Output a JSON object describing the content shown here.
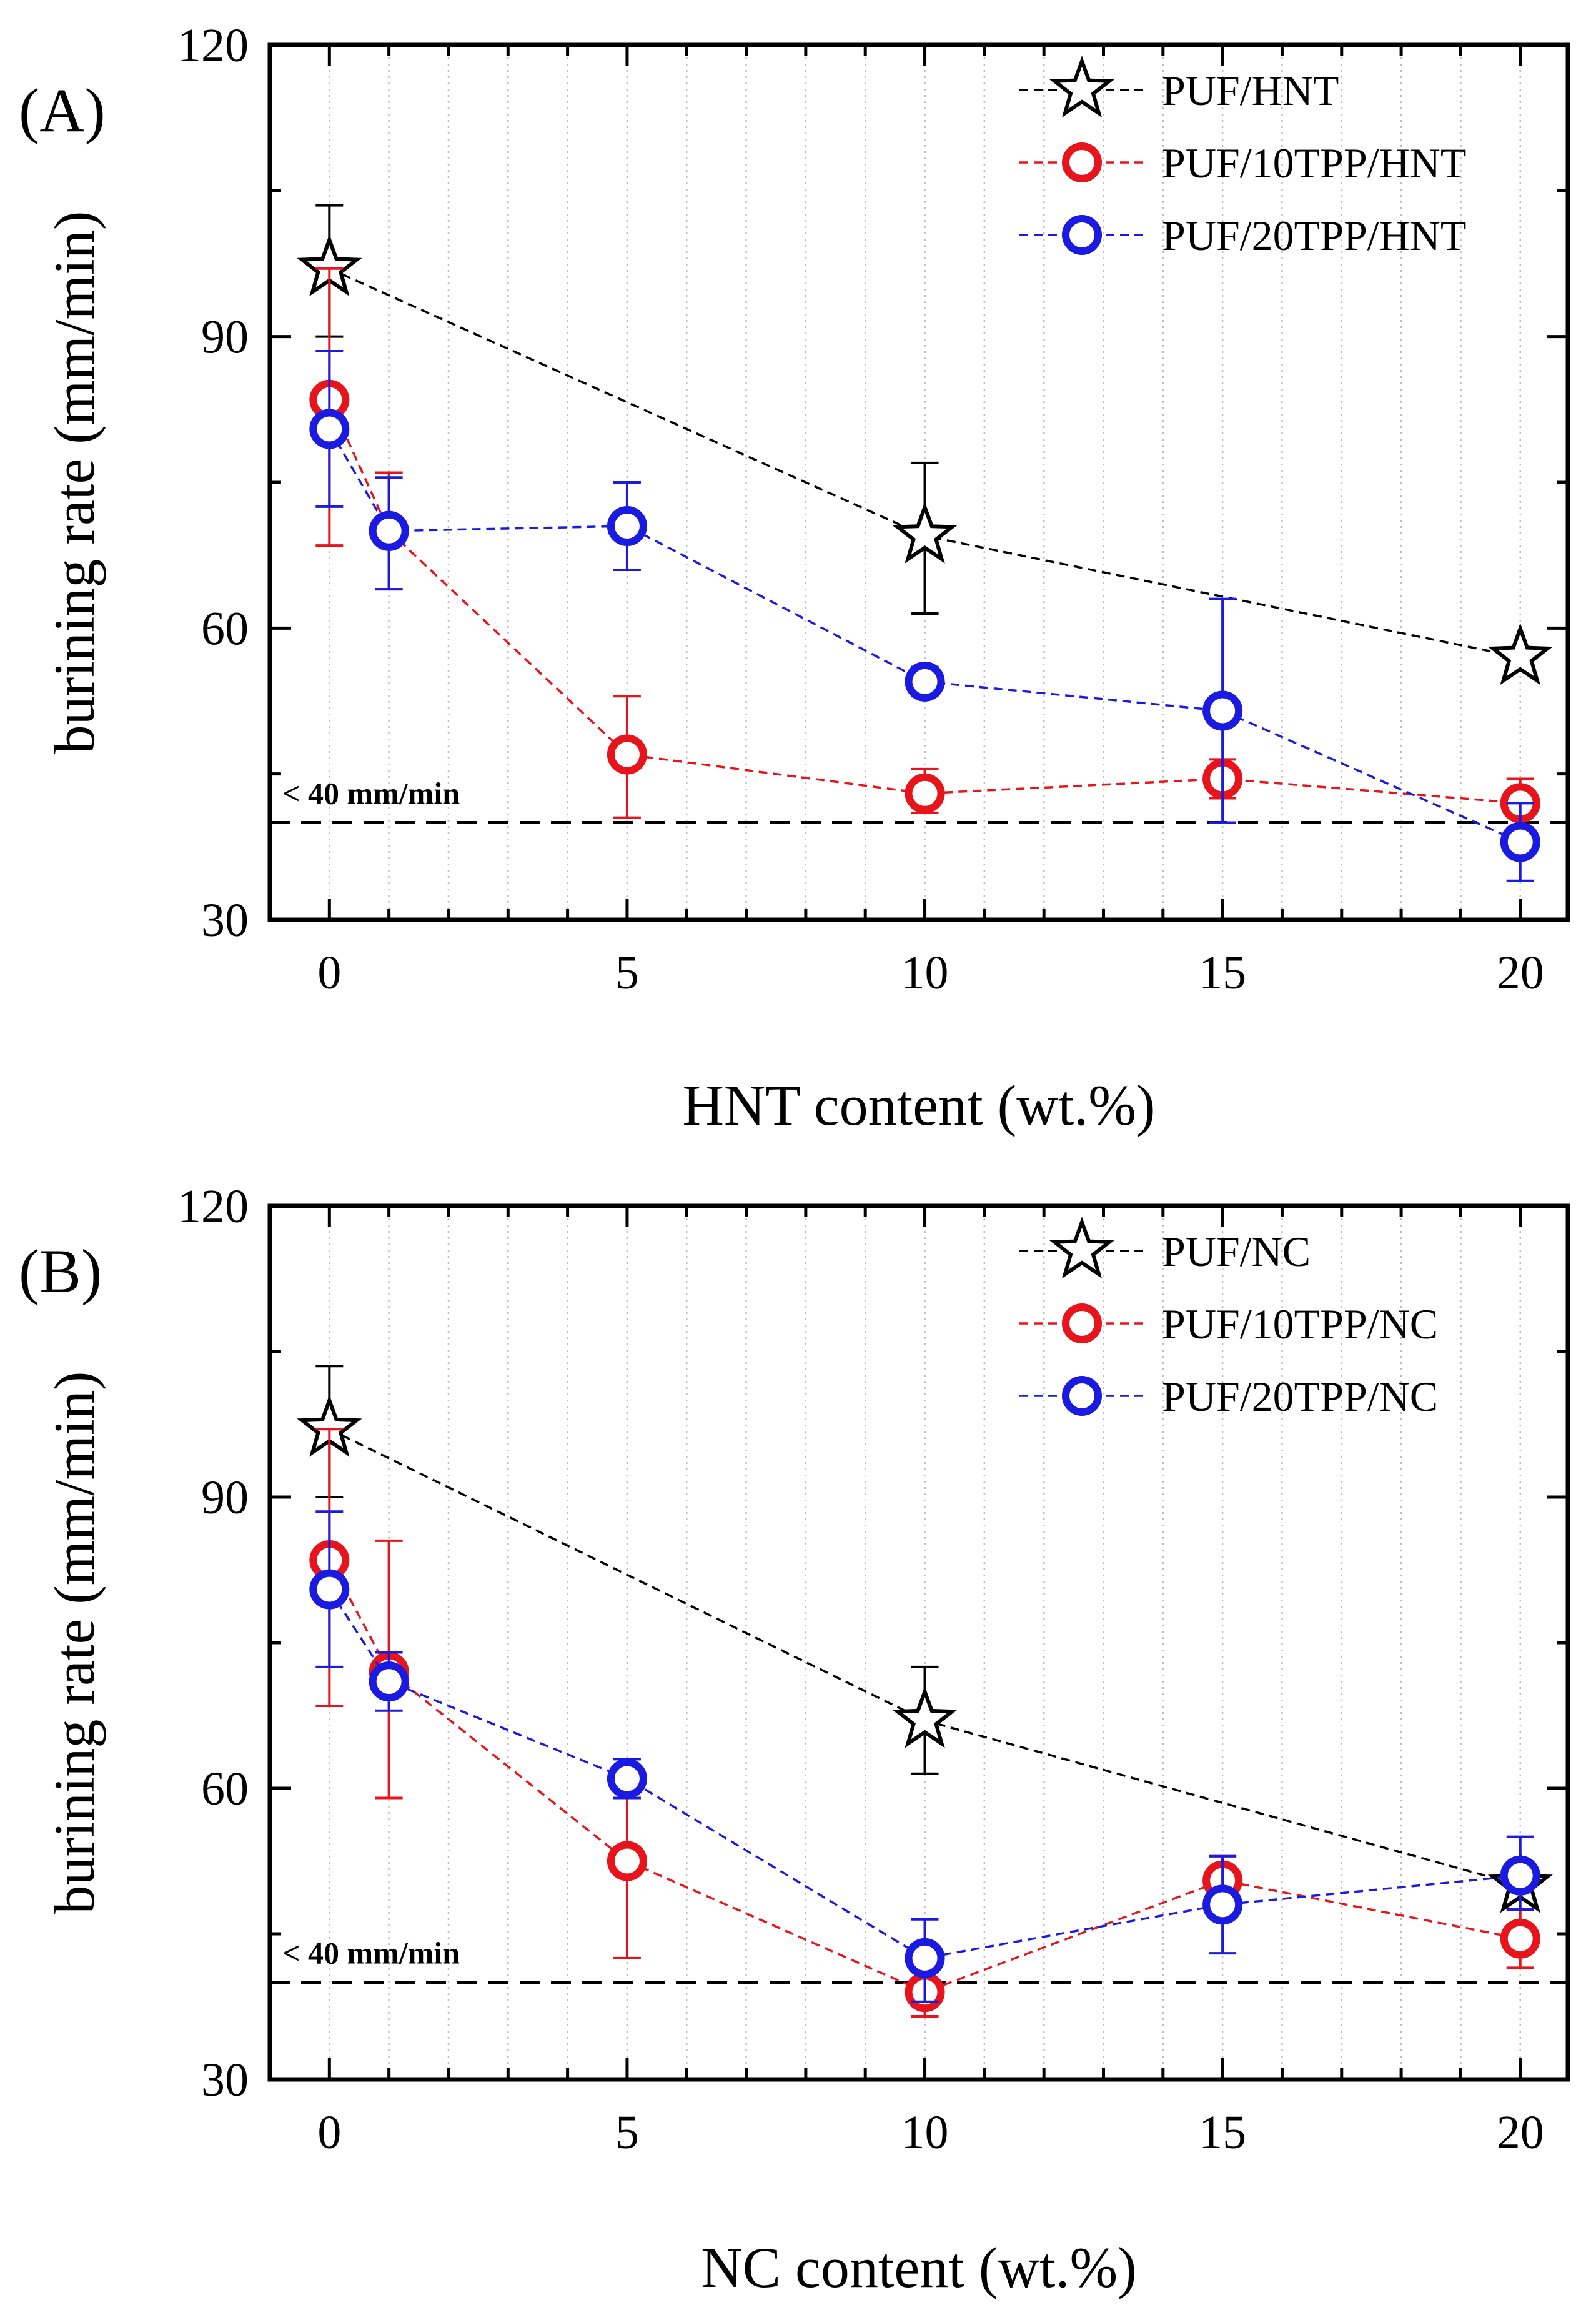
{
  "chart_data": [
    {
      "type": "line",
      "panel_label": "(A)",
      "xlabel": "HNT content (wt.%)",
      "ylabel": "burining rate (mm/min)",
      "xlim": [
        -1,
        20.8
      ],
      "ylim": [
        30,
        120
      ],
      "x_ticks": [
        0,
        5,
        10,
        15,
        20
      ],
      "y_ticks": [
        30,
        60,
        90,
        120
      ],
      "grid": "vertical dotted",
      "legend_position": "top-right",
      "threshold": {
        "value": 40,
        "label": "< 40 mm/min"
      },
      "series": [
        {
          "name": "PUF/HNT",
          "color": "#000000",
          "marker": "star",
          "points": [
            {
              "x": 0,
              "y": 97,
              "err_low": 90,
              "err_high": 103.5
            },
            {
              "x": 10,
              "y": 69.5,
              "err_low": 61.5,
              "err_high": 77
            },
            {
              "x": 20,
              "y": 57,
              "err_low": 56,
              "err_high": 58
            }
          ]
        },
        {
          "name": "PUF/10TPP/HNT",
          "color": "#e8141b",
          "marker": "circle",
          "points": [
            {
              "x": 0,
              "y": 83.5,
              "err_low": 68.5,
              "err_high": 97
            },
            {
              "x": 1,
              "y": 70,
              "err_low": 64,
              "err_high": 76
            },
            {
              "x": 5,
              "y": 47,
              "err_low": 40.5,
              "err_high": 53
            },
            {
              "x": 10,
              "y": 43,
              "err_low": 41,
              "err_high": 45.5
            },
            {
              "x": 15,
              "y": 44.5,
              "err_low": 42.5,
              "err_high": 46.5
            },
            {
              "x": 20,
              "y": 42,
              "err_low": 39.5,
              "err_high": 44.5
            }
          ]
        },
        {
          "name": "PUF/20TPP/HNT",
          "color": "#1a1ae0",
          "marker": "circle",
          "points": [
            {
              "x": 0,
              "y": 80.5,
              "err_low": 72.5,
              "err_high": 88.5
            },
            {
              "x": 1,
              "y": 70,
              "err_low": 64,
              "err_high": 75.5
            },
            {
              "x": 5,
              "y": 70.5,
              "err_low": 66,
              "err_high": 75
            },
            {
              "x": 10,
              "y": 54.5,
              "err_low": 53,
              "err_high": 56
            },
            {
              "x": 15,
              "y": 51.5,
              "err_low": 40,
              "err_high": 63
            },
            {
              "x": 20,
              "y": 38,
              "err_low": 34,
              "err_high": 42
            }
          ]
        }
      ]
    },
    {
      "type": "line",
      "panel_label": "(B)",
      "xlabel": "NC content (wt.%)",
      "ylabel": "burining rate (mm/min)",
      "xlim": [
        -1,
        20.8
      ],
      "ylim": [
        30,
        120
      ],
      "x_ticks": [
        0,
        5,
        10,
        15,
        20
      ],
      "y_ticks": [
        30,
        60,
        90,
        120
      ],
      "grid": "vertical dotted",
      "legend_position": "top-right",
      "threshold": {
        "value": 40,
        "label": "< 40 mm/min"
      },
      "series": [
        {
          "name": "PUF/NC",
          "color": "#000000",
          "marker": "star",
          "points": [
            {
              "x": 0,
              "y": 97,
              "err_low": 90,
              "err_high": 103.5
            },
            {
              "x": 10,
              "y": 67,
              "err_low": 61.5,
              "err_high": 72.5
            },
            {
              "x": 20,
              "y": 50,
              "err_low": 49,
              "err_high": 51
            }
          ]
        },
        {
          "name": "PUF/10TPP/NC",
          "color": "#e8141b",
          "marker": "circle",
          "points": [
            {
              "x": 0,
              "y": 83.5,
              "err_low": 68.5,
              "err_high": 97
            },
            {
              "x": 1,
              "y": 72,
              "err_low": 59,
              "err_high": 85.5
            },
            {
              "x": 5,
              "y": 52.5,
              "err_low": 42.5,
              "err_high": 62
            },
            {
              "x": 10,
              "y": 39,
              "err_low": 36.5,
              "err_high": 41.5
            },
            {
              "x": 15,
              "y": 50.5,
              "err_low": 48,
              "err_high": 53
            },
            {
              "x": 20,
              "y": 44.5,
              "err_low": 41.5,
              "err_high": 47.5
            }
          ]
        },
        {
          "name": "PUF/20TPP/NC",
          "color": "#1a1ae0",
          "marker": "circle",
          "points": [
            {
              "x": 0,
              "y": 80.5,
              "err_low": 72.5,
              "err_high": 88.5
            },
            {
              "x": 1,
              "y": 71,
              "err_low": 68,
              "err_high": 74
            },
            {
              "x": 5,
              "y": 61,
              "err_low": 59,
              "err_high": 63
            },
            {
              "x": 10,
              "y": 42.5,
              "err_low": 38,
              "err_high": 46.5
            },
            {
              "x": 15,
              "y": 48,
              "err_low": 43,
              "err_high": 53
            },
            {
              "x": 20,
              "y": 51,
              "err_low": 47.5,
              "err_high": 55
            }
          ]
        }
      ]
    }
  ]
}
